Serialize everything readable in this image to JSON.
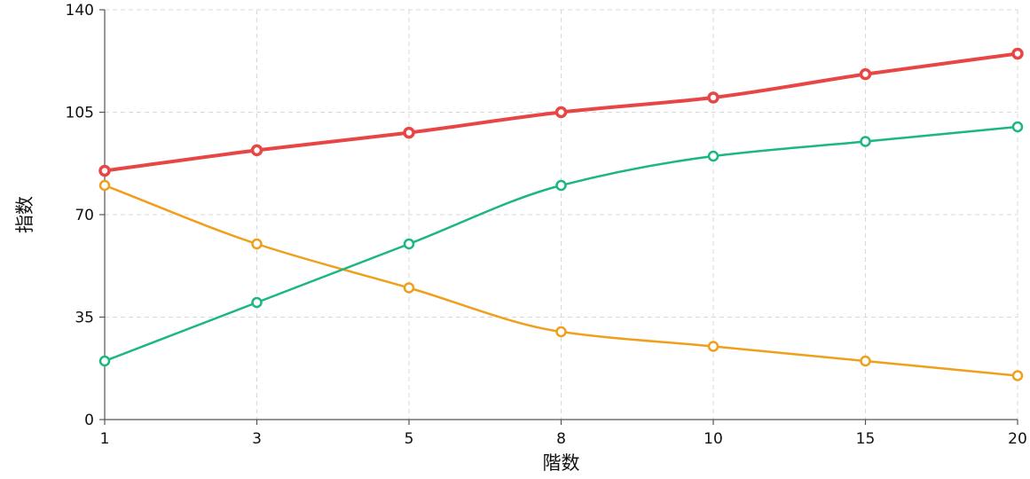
{
  "chart_data": {
    "type": "line",
    "x": [
      1,
      3,
      5,
      8,
      10,
      15,
      20
    ],
    "xlabel": "階数",
    "ylabel": "指数",
    "ylim": [
      0,
      140
    ],
    "yticks": [
      0,
      35,
      70,
      105,
      140
    ],
    "grid": true,
    "series": [
      {
        "color": "#e84545",
        "values": [
          85,
          92,
          98,
          105,
          110,
          118,
          125
        ]
      },
      {
        "color": "#1ab77f",
        "values": [
          20,
          40,
          60,
          80,
          90,
          95,
          100
        ]
      },
      {
        "color": "#f09f1b",
        "values": [
          80,
          60,
          45,
          30,
          25,
          20,
          15
        ]
      }
    ]
  }
}
